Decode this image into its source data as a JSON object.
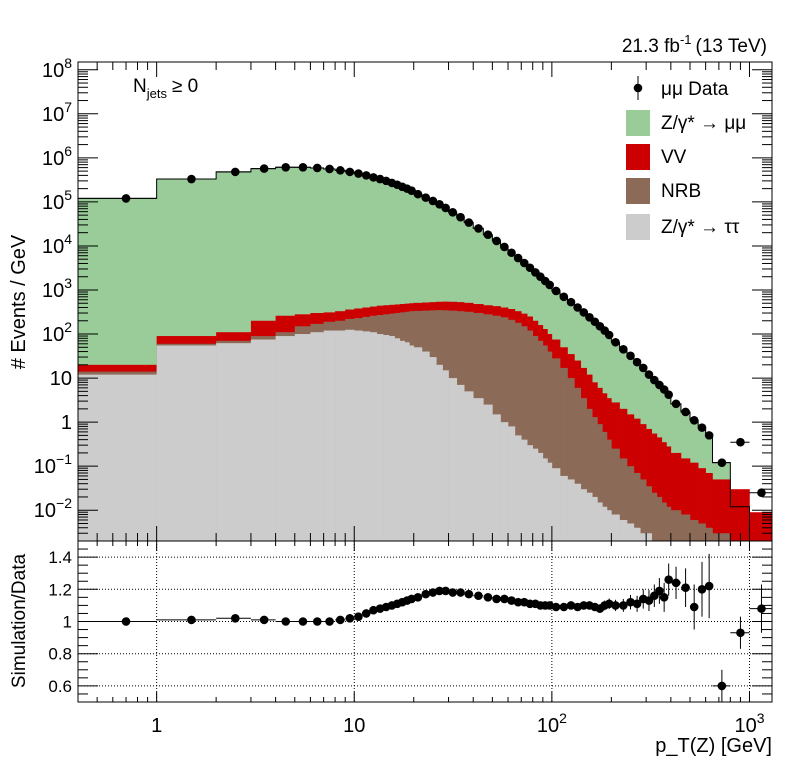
{
  "header": {
    "lumi_label": "21.3 fb",
    "lumi_exponent": "-1",
    "energy_label": "(13 TeV)"
  },
  "annotation": {
    "main": "N",
    "subscript": "jets",
    "relation": "≥ 0"
  },
  "chart_data": [
    {
      "type": "area",
      "panel": "main",
      "ylabel": "# Events / GeV",
      "yscale": "log",
      "xscale": "log",
      "xlim": [
        0.4,
        1300
      ],
      "ylim": [
        0.002,
        150000000
      ],
      "y_tick_labels": [
        {
          "v": 0.01,
          "b": "10",
          "e": "−2"
        },
        {
          "v": 0.1,
          "b": "10",
          "e": "−1"
        },
        {
          "v": 1,
          "b": "1",
          "e": ""
        },
        {
          "v": 10,
          "b": "10",
          "e": ""
        },
        {
          "v": 100,
          "b": "10",
          "e": "2"
        },
        {
          "v": 1000,
          "b": "10",
          "e": "3"
        },
        {
          "v": 10000,
          "b": "10",
          "e": "4"
        },
        {
          "v": 100000,
          "b": "10",
          "e": "5"
        },
        {
          "v": 1000000,
          "b": "10",
          "e": "6"
        },
        {
          "v": 10000000,
          "b": "10",
          "e": "7"
        },
        {
          "v": 100000000,
          "b": "10",
          "e": "8"
        }
      ],
      "legend": {
        "placement": "top-right",
        "entries": [
          {
            "kind": "marker",
            "label": "μμ Data",
            "color": "#000000"
          },
          {
            "kind": "box",
            "label": "Z/γ* → μμ",
            "color": "#99cc99"
          },
          {
            "kind": "box",
            "label": "VV",
            "color": "#cc0000"
          },
          {
            "kind": "box",
            "label": "NRB",
            "color": "#8c6a58"
          },
          {
            "kind": "box",
            "label": "Z/γ* → ττ",
            "color": "#cccccc"
          }
        ]
      },
      "stack_order": [
        "Z/γ* → ττ",
        "NRB",
        "VV",
        "Z/γ* → μμ"
      ],
      "stack_colors": [
        "#cccccc",
        "#8c6a58",
        "#cc0000",
        "#99cc99"
      ],
      "bin_edges": [
        0.4,
        1,
        2,
        3,
        4,
        5,
        6,
        7,
        8,
        9,
        10,
        11,
        12,
        13,
        14,
        15,
        16,
        17,
        18,
        19,
        20,
        22,
        24,
        26,
        28,
        30,
        33,
        36,
        40,
        45,
        50,
        55,
        60,
        65,
        70,
        75,
        80,
        85,
        90,
        95,
        100,
        110,
        120,
        130,
        140,
        150,
        160,
        170,
        180,
        190,
        200,
        220,
        240,
        260,
        280,
        300,
        320,
        340,
        360,
        380,
        400,
        450,
        500,
        550,
        600,
        650,
        800,
        1000,
        1300
      ],
      "cumulative_top": {
        "Z/γ* → ττ": [
          12,
          55,
          62,
          75,
          90,
          100,
          110,
          120,
          120,
          125,
          120,
          115,
          110,
          100,
          95,
          90,
          80,
          70,
          65,
          55,
          50,
          40,
          30,
          20,
          15,
          10,
          7,
          5,
          3.5,
          2.5,
          1.5,
          1,
          0.8,
          0.5,
          0.4,
          0.3,
          0.25,
          0.2,
          0.15,
          0.12,
          0.09,
          0.06,
          0.05,
          0.04,
          0.03,
          0.025,
          0.02,
          0.015,
          0.012,
          0.01,
          0.008,
          0.006,
          0.005,
          0.004,
          0.003,
          0.003,
          0.002,
          0.002,
          0.002,
          0.002,
          0.002,
          0.002,
          0.002,
          0.002,
          0.002,
          0.002,
          0.002,
          0.002
        ],
        "NRB": [
          14,
          60,
          70,
          90,
          110,
          150,
          170,
          190,
          200,
          220,
          230,
          245,
          260,
          270,
          280,
          290,
          300,
          310,
          320,
          330,
          335,
          340,
          345,
          350,
          345,
          340,
          330,
          320,
          300,
          280,
          260,
          240,
          210,
          180,
          150,
          120,
          90,
          70,
          55,
          40,
          28,
          17,
          10,
          6,
          3.5,
          2,
          1.3,
          0.9,
          0.6,
          0.4,
          0.25,
          0.15,
          0.1,
          0.07,
          0.05,
          0.035,
          0.025,
          0.02,
          0.015,
          0.012,
          0.01,
          0.008,
          0.006,
          0.005,
          0.004,
          0.003,
          0.002,
          0.002
        ],
        "VV": [
          20,
          90,
          110,
          200,
          260,
          280,
          300,
          310,
          330,
          360,
          380,
          400,
          420,
          440,
          450,
          460,
          470,
          480,
          490,
          500,
          510,
          520,
          530,
          540,
          545,
          540,
          530,
          510,
          480,
          450,
          430,
          400,
          370,
          330,
          290,
          250,
          200,
          160,
          130,
          100,
          75,
          50,
          35,
          25,
          17,
          12,
          8,
          6,
          4.5,
          3.5,
          2.8,
          2,
          1.5,
          1.2,
          0.9,
          0.7,
          0.55,
          0.45,
          0.35,
          0.28,
          0.2,
          0.15,
          0.12,
          0.09,
          0.07,
          0.05,
          0.03,
          0.009
        ],
        "Z/γ* → μμ": [
          120000,
          330000,
          480000,
          570000,
          610000,
          610000,
          590000,
          560000,
          520000,
          480000,
          440000,
          400000,
          360000,
          330000,
          300000,
          270000,
          245000,
          220000,
          200000,
          180000,
          150000,
          125000,
          105000,
          88000,
          73000,
          58000,
          45000,
          34000,
          25000,
          18000,
          13000,
          9500,
          7000,
          5300,
          4100,
          3200,
          2500,
          2000,
          1600,
          1300,
          950,
          700,
          530,
          400,
          310,
          240,
          190,
          150,
          120,
          95,
          65,
          45,
          32,
          23,
          17,
          12,
          9,
          7,
          5.5,
          4.2,
          2.6,
          1.7,
          1.1,
          0.75,
          0.5,
          0.12,
          0.012,
          0.002
        ]
      },
      "data_points": {
        "name": "μμ Data",
        "x": [
          0.7,
          1.5,
          2.5,
          3.5,
          4.5,
          5.5,
          6.5,
          7.5,
          8.5,
          9.5,
          10.5,
          11.5,
          12.5,
          13.5,
          14.5,
          15.5,
          16.5,
          17.5,
          18.5,
          19.5,
          21,
          23,
          25,
          27,
          29,
          31.5,
          34.5,
          38,
          42.5,
          47.5,
          52.5,
          57.5,
          62.5,
          67.5,
          72.5,
          77.5,
          82.5,
          87.5,
          92.5,
          97.5,
          105,
          115,
          125,
          135,
          145,
          155,
          165,
          175,
          185,
          195,
          210,
          230,
          250,
          270,
          290,
          310,
          330,
          350,
          370,
          390,
          425,
          475,
          525,
          575,
          625,
          725,
          900,
          1150
        ],
        "y": [
          120000,
          330000,
          480000,
          570000,
          610000,
          610000,
          590000,
          560000,
          520000,
          480000,
          440000,
          400000,
          360000,
          330000,
          300000,
          270000,
          245000,
          220000,
          200000,
          180000,
          150000,
          125000,
          105000,
          88000,
          73000,
          58000,
          45000,
          34000,
          25000,
          18000,
          13000,
          9500,
          7000,
          5300,
          4100,
          3200,
          2500,
          2000,
          1600,
          1300,
          950,
          700,
          530,
          400,
          310,
          240,
          190,
          150,
          120,
          95,
          65,
          45,
          32,
          23,
          17,
          12,
          9,
          7,
          5.5,
          4.2,
          2.6,
          1.7,
          1.1,
          0.75,
          0.5,
          0.12,
          0.35,
          0.025
        ]
      }
    },
    {
      "type": "scatter",
      "panel": "ratio",
      "ylabel": "Simulation/Data",
      "xlabel": "p_T(Z) [GeV]",
      "xscale": "log",
      "xlim": [
        0.4,
        1300
      ],
      "ylim": [
        0.5,
        1.5
      ],
      "yticks": [
        0.6,
        0.8,
        1,
        1.2,
        1.4
      ],
      "y_tick_labels": [
        "0.6",
        "0.8",
        "1",
        "1.2",
        "1.4"
      ],
      "x_tick_labels": [
        {
          "v": 1,
          "b": "1",
          "e": ""
        },
        {
          "v": 10,
          "b": "10",
          "e": ""
        },
        {
          "v": 100,
          "b": "10",
          "e": "2"
        },
        {
          "v": 1000,
          "b": "10",
          "e": "3"
        }
      ],
      "grid": true,
      "x": [
        0.7,
        1.5,
        2.5,
        3.5,
        4.5,
        5.5,
        6.5,
        7.5,
        8.5,
        9.5,
        10.5,
        11.5,
        12.5,
        13.5,
        14.5,
        15.5,
        16.5,
        17.5,
        18.5,
        19.5,
        21,
        23,
        25,
        27,
        29,
        31.5,
        34.5,
        38,
        42.5,
        47.5,
        52.5,
        57.5,
        62.5,
        67.5,
        72.5,
        77.5,
        82.5,
        87.5,
        92.5,
        97.5,
        105,
        115,
        125,
        135,
        145,
        155,
        165,
        175,
        185,
        195,
        210,
        230,
        250,
        270,
        290,
        310,
        330,
        350,
        370,
        390,
        425,
        475,
        525,
        575,
        625,
        725,
        900,
        1150
      ],
      "y": [
        1.0,
        1.01,
        1.02,
        1.01,
        1.0,
        1.0,
        1.0,
        1.0,
        1.01,
        1.02,
        1.03,
        1.05,
        1.07,
        1.08,
        1.09,
        1.1,
        1.11,
        1.12,
        1.13,
        1.14,
        1.15,
        1.17,
        1.18,
        1.19,
        1.19,
        1.18,
        1.18,
        1.17,
        1.16,
        1.15,
        1.14,
        1.14,
        1.13,
        1.12,
        1.12,
        1.11,
        1.11,
        1.1,
        1.1,
        1.1,
        1.09,
        1.09,
        1.1,
        1.09,
        1.1,
        1.1,
        1.09,
        1.08,
        1.1,
        1.11,
        1.1,
        1.1,
        1.12,
        1.11,
        1.14,
        1.13,
        1.16,
        1.19,
        1.15,
        1.26,
        1.24,
        1.21,
        1.09,
        1.2,
        1.22,
        0.6,
        0.93,
        1.08
      ],
      "yerr": [
        0.002,
        0.002,
        0.002,
        0.002,
        0.002,
        0.002,
        0.002,
        0.002,
        0.002,
        0.002,
        0.002,
        0.002,
        0.002,
        0.002,
        0.002,
        0.002,
        0.002,
        0.002,
        0.002,
        0.002,
        0.003,
        0.003,
        0.003,
        0.003,
        0.003,
        0.004,
        0.004,
        0.004,
        0.005,
        0.005,
        0.006,
        0.006,
        0.007,
        0.008,
        0.008,
        0.009,
        0.01,
        0.01,
        0.011,
        0.012,
        0.012,
        0.014,
        0.016,
        0.018,
        0.02,
        0.022,
        0.024,
        0.027,
        0.03,
        0.033,
        0.035,
        0.04,
        0.045,
        0.05,
        0.06,
        0.065,
        0.07,
        0.08,
        0.09,
        0.1,
        0.1,
        0.12,
        0.14,
        0.17,
        0.2,
        0.1,
        0.1,
        0.15
      ]
    }
  ]
}
